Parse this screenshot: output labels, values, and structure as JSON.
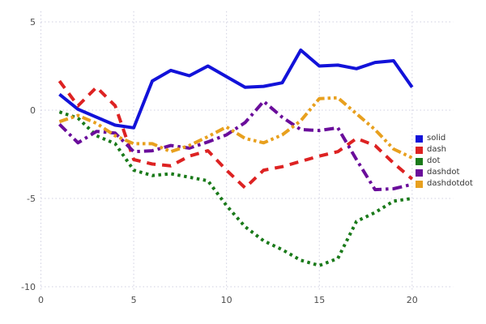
{
  "chart_data": {
    "type": "line",
    "title": "",
    "xlabel": "",
    "ylabel": "",
    "grid": true,
    "legend_position": "right",
    "x_ticks": [
      0,
      5,
      10,
      15,
      20
    ],
    "y_ticks": [
      5,
      0,
      -5,
      -10
    ],
    "xlim": [
      0,
      22.2
    ],
    "ylim": [
      -10.6,
      5.6
    ],
    "x": [
      1,
      2,
      3,
      4,
      5,
      6,
      7,
      8,
      9,
      10,
      11,
      12,
      13,
      14,
      15,
      16,
      17,
      18,
      19,
      20
    ],
    "series": [
      {
        "name": "solid",
        "color": "#1212d9",
        "dash": "solid",
        "values": [
          0.9,
          0.05,
          -0.4,
          -0.85,
          -1.0,
          1.65,
          2.25,
          1.95,
          2.5,
          1.9,
          1.3,
          1.35,
          1.55,
          3.4,
          2.5,
          2.55,
          2.35,
          2.7,
          2.8,
          1.3
        ]
      },
      {
        "name": "dash",
        "color": "#dd2222",
        "dash": "dash",
        "values": [
          1.65,
          0.25,
          1.3,
          0.25,
          -2.8,
          -3.05,
          -3.15,
          -2.6,
          -2.3,
          -3.4,
          -4.4,
          -3.4,
          -3.2,
          -2.9,
          -2.6,
          -2.35,
          -1.6,
          -2.0,
          -3.0,
          -3.9
        ]
      },
      {
        "name": "dot",
        "color": "#1a7a1a",
        "dash": "dot",
        "values": [
          -0.1,
          -0.45,
          -1.45,
          -1.9,
          -3.4,
          -3.7,
          -3.6,
          -3.8,
          -4.0,
          -5.4,
          -6.6,
          -7.4,
          -7.9,
          -8.5,
          -8.8,
          -8.4,
          -6.3,
          -5.8,
          -5.15,
          -5.0
        ]
      },
      {
        "name": "dashdot",
        "color": "#6a0d9b",
        "dash": "dashdot",
        "values": [
          -0.8,
          -1.85,
          -1.2,
          -1.3,
          -2.35,
          -2.3,
          -2.0,
          -2.15,
          -1.8,
          -1.4,
          -0.7,
          0.5,
          -0.4,
          -1.1,
          -1.15,
          -1.0,
          -2.8,
          -4.5,
          -4.45,
          -4.2
        ]
      },
      {
        "name": "dashdotdot",
        "color": "#e8a01e",
        "dash": "dashdotdot",
        "values": [
          -0.65,
          -0.3,
          -0.75,
          -1.45,
          -1.9,
          -1.9,
          -2.35,
          -2.0,
          -1.5,
          -0.95,
          -1.6,
          -1.85,
          -1.4,
          -0.6,
          0.65,
          0.7,
          -0.2,
          -1.1,
          -2.2,
          -2.7
        ]
      }
    ],
    "grid_color": "#cfcfe0",
    "tick_label_color": "#4d4d4d"
  }
}
